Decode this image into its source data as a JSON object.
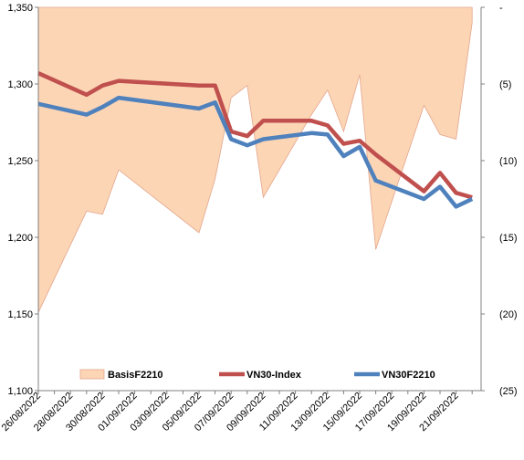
{
  "chart_data": {
    "type": "line",
    "title": "",
    "xlabel": "",
    "ylabel": "",
    "x_tick_labels": [
      "26/08/2022",
      "28/08/2022",
      "30/08/2022",
      "01/09/2022",
      "03/09/2022",
      "05/09/2022",
      "07/09/2022",
      "09/09/2022",
      "11/09/2022",
      "13/09/2022",
      "15/09/2022",
      "17/09/2022",
      "19/09/2022",
      "21/09/2022"
    ],
    "y_left": {
      "ylim": [
        1100,
        1350
      ],
      "ticks": [
        1100,
        1150,
        1200,
        1250,
        1300,
        1350
      ],
      "tick_labels": [
        "1,100",
        "1,150",
        "1,200",
        "1,250",
        "1,300",
        "1,350"
      ]
    },
    "y_right": {
      "ylim": [
        -25,
        0
      ],
      "inverted": true,
      "ticks": [
        0,
        -5,
        -10,
        -15,
        -20,
        -25
      ],
      "tick_labels": [
        "-",
        "(5)",
        "(10)",
        "(15)",
        "(20)",
        "(25)"
      ]
    },
    "legend": {
      "position": "bottom-inside",
      "entries": [
        "BasisF2210",
        "VN30-Index",
        "VN30F2210"
      ]
    },
    "series": [
      {
        "name": "BasisF2210",
        "type": "area",
        "axis": "right",
        "color": "#fcd5b5",
        "stroke": "#e3a58c",
        "points": [
          [
            "26/08/2022",
            -19.9
          ],
          [
            "29/08/2022",
            -13.3
          ],
          [
            "30/08/2022",
            -13.5
          ],
          [
            "31/08/2022",
            -10.6
          ],
          [
            "05/09/2022",
            -14.7
          ],
          [
            "06/09/2022",
            -11.2
          ],
          [
            "07/09/2022",
            -5.9
          ],
          [
            "08/09/2022",
            -5.1
          ],
          [
            "09/09/2022",
            -12.4
          ],
          [
            "12/09/2022",
            -7.0
          ],
          [
            "13/09/2022",
            -5.4
          ],
          [
            "14/09/2022",
            -8.1
          ],
          [
            "15/09/2022",
            -4.4
          ],
          [
            "16/09/2022",
            -15.8
          ],
          [
            "19/09/2022",
            -6.4
          ],
          [
            "20/09/2022",
            -8.3
          ],
          [
            "21/09/2022",
            -8.6
          ],
          [
            "22/09/2022",
            -1.0
          ],
          [
            "22/09/2022",
            0.0
          ]
        ]
      },
      {
        "name": "VN30-Index",
        "type": "line",
        "axis": "left",
        "color": "#c0504d",
        "points": [
          [
            "26/08/2022",
            1307
          ],
          [
            "29/08/2022",
            1293
          ],
          [
            "30/08/2022",
            1299
          ],
          [
            "31/08/2022",
            1302
          ],
          [
            "05/09/2022",
            1299
          ],
          [
            "06/09/2022",
            1299
          ],
          [
            "07/09/2022",
            1269
          ],
          [
            "08/09/2022",
            1266
          ],
          [
            "09/09/2022",
            1276
          ],
          [
            "12/09/2022",
            1276
          ],
          [
            "13/09/2022",
            1273
          ],
          [
            "14/09/2022",
            1261
          ],
          [
            "15/09/2022",
            1263
          ],
          [
            "16/09/2022",
            1254
          ],
          [
            "19/09/2022",
            1230
          ],
          [
            "20/09/2022",
            1242
          ],
          [
            "21/09/2022",
            1229
          ],
          [
            "22/09/2022",
            1226
          ]
        ]
      },
      {
        "name": "VN30F2210",
        "type": "line",
        "axis": "left",
        "color": "#4f81bd",
        "points": [
          [
            "26/08/2022",
            1287
          ],
          [
            "29/08/2022",
            1280
          ],
          [
            "30/08/2022",
            1285
          ],
          [
            "31/08/2022",
            1291
          ],
          [
            "05/09/2022",
            1284
          ],
          [
            "06/09/2022",
            1288
          ],
          [
            "07/09/2022",
            1264
          ],
          [
            "08/09/2022",
            1260
          ],
          [
            "09/09/2022",
            1264
          ],
          [
            "12/09/2022",
            1268
          ],
          [
            "13/09/2022",
            1267
          ],
          [
            "14/09/2022",
            1253
          ],
          [
            "15/09/2022",
            1259
          ],
          [
            "16/09/2022",
            1237
          ],
          [
            "19/09/2022",
            1225
          ],
          [
            "20/09/2022",
            1233
          ],
          [
            "21/09/2022",
            1220
          ],
          [
            "22/09/2022",
            1225
          ]
        ]
      }
    ]
  }
}
